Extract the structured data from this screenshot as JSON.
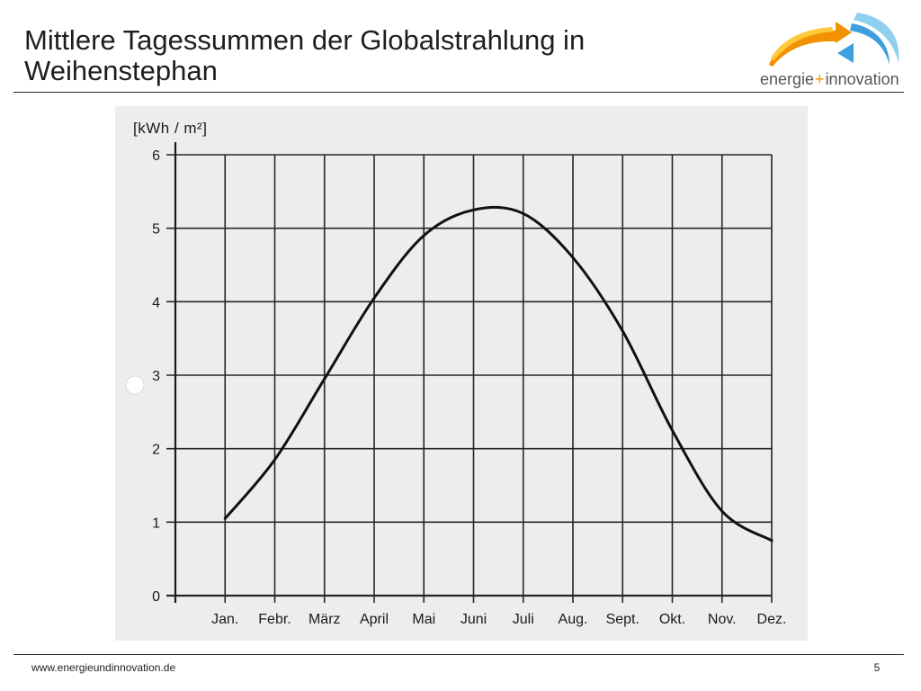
{
  "logo": {
    "word_left": "energie",
    "plus": "+",
    "word_right": "innovation",
    "colors": {
      "orange": "#f39200",
      "yellow": "#ffc93c",
      "blue": "#3d9fdc",
      "light_blue": "#8fd0f0",
      "text": "#555555"
    }
  },
  "chart_data": {
    "type": "line",
    "title": "Mittlere Tagessummen der Globalstrahlung in Weihenstephan",
    "ylabel": "[kWh / m²]",
    "categories": [
      "Jan.",
      "Febr.",
      "März",
      "April",
      "Mai",
      "Juni",
      "Juli",
      "Aug.",
      "Sept.",
      "Okt.",
      "Nov.",
      "Dez."
    ],
    "values": [
      1.05,
      1.85,
      2.95,
      4.05,
      4.9,
      5.25,
      5.2,
      4.6,
      3.6,
      2.25,
      1.15,
      0.75
    ],
    "yticks": [
      0,
      1,
      2,
      3,
      4,
      5,
      6
    ],
    "ylim": [
      0,
      6
    ],
    "grid": true,
    "line_color": "#111111"
  },
  "footer": {
    "website": "www.energieundinnovation.de",
    "page_number": "5"
  }
}
